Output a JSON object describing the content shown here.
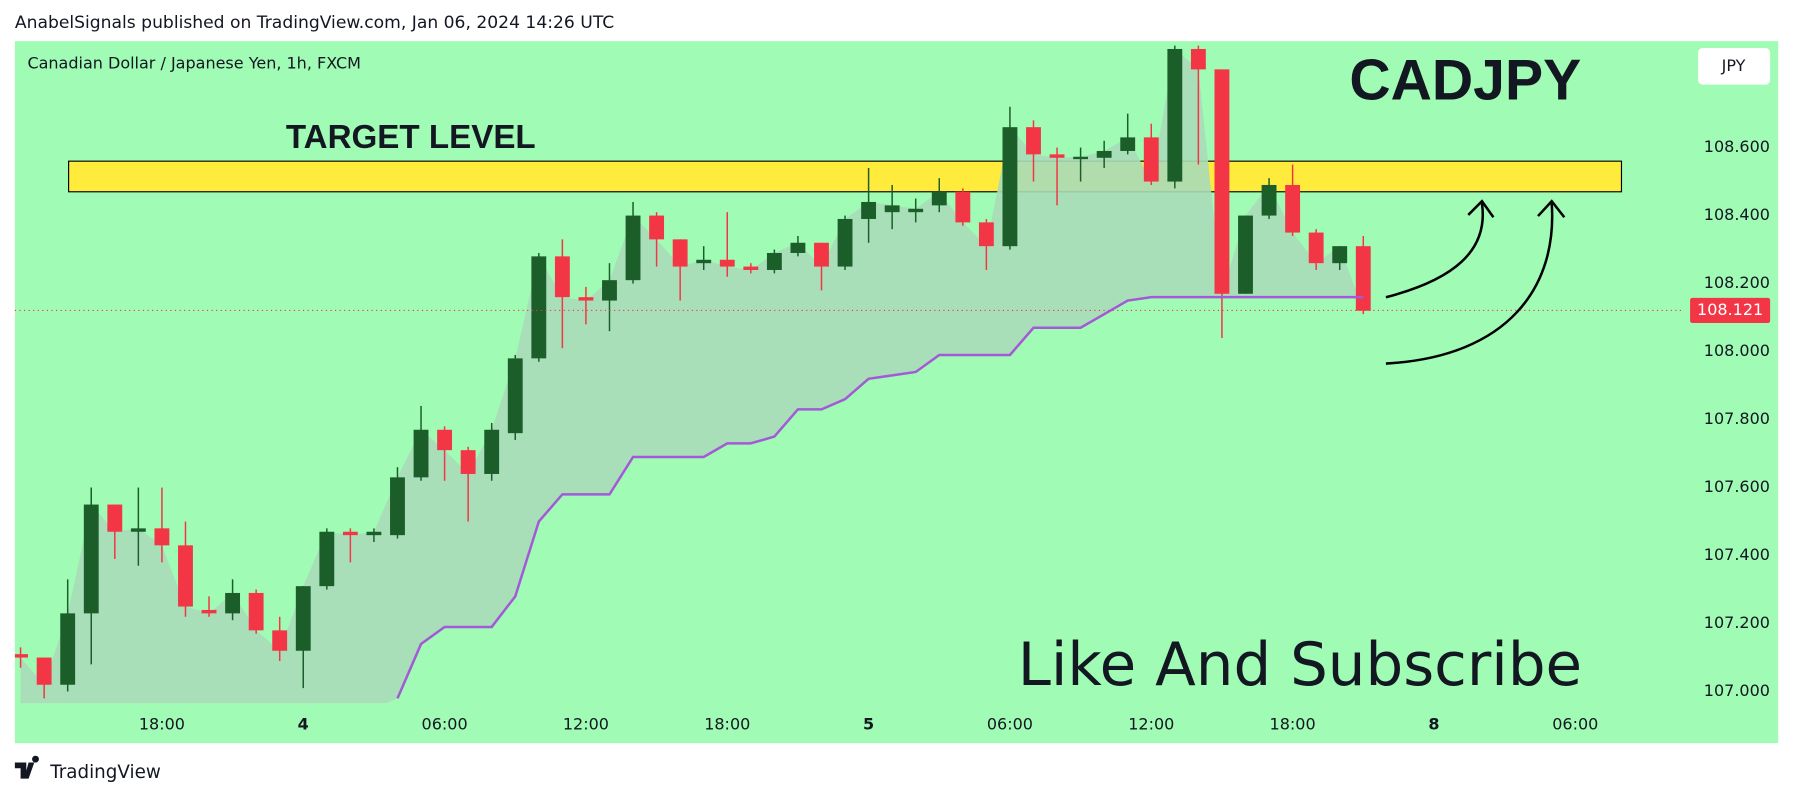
{
  "header": "AnabelSignals published on TradingView.com, Jan 06, 2024 14:26 UTC",
  "footer": "TradingView",
  "chart_data": {
    "type": "candlestick",
    "title": "CADJPY",
    "subtitle": "Canadian Dollar / Japanese Yen, 1h, FXCM",
    "currency": "JPY",
    "annotations": [
      "TARGET LEVEL",
      "Like And Subscribe"
    ],
    "target_zone": [
      108.47,
      108.56
    ],
    "target_color": "#ffeb3b",
    "background": "#a0fbb4",
    "up_color": "#1b5e2a",
    "down_color": "#f23645",
    "categories": [
      null,
      null,
      null,
      null,
      null,
      null,
      "18:00",
      null,
      null,
      null,
      null,
      null,
      "4",
      null,
      null,
      null,
      null,
      null,
      "06:00",
      null,
      null,
      null,
      null,
      null,
      "12:00",
      null,
      null,
      null,
      null,
      null,
      "18:00",
      null,
      null,
      null,
      null,
      null,
      "5",
      null,
      null,
      null,
      null,
      null,
      "06:00",
      null,
      null,
      null,
      null,
      null,
      "12:00",
      null,
      null,
      null,
      null,
      null,
      "18:00",
      null,
      null,
      null,
      null,
      null,
      "8",
      null,
      null,
      null,
      null,
      null,
      "06:00",
      null,
      null,
      null,
      null
    ],
    "open": [
      107.11,
      107.1,
      107.02,
      107.23,
      107.55,
      107.47,
      107.48,
      107.43,
      107.24,
      107.23,
      107.29,
      107.18,
      107.12,
      107.31,
      107.47,
      107.46,
      107.46,
      107.63,
      107.77,
      107.71,
      107.64,
      107.76,
      107.98,
      108.28,
      108.16,
      108.15,
      108.21,
      108.4,
      108.33,
      108.26,
      108.27,
      108.25,
      108.24,
      108.29,
      108.32,
      108.25,
      108.39,
      108.41,
      108.41,
      108.43,
      108.47,
      108.38,
      108.31,
      108.66,
      108.58,
      108.566,
      108.57,
      108.59,
      108.63,
      108.5,
      108.89,
      108.83,
      108.17,
      108.4,
      108.49,
      108.35,
      108.26,
      108.31,
      null,
      null,
      null,
      null,
      null,
      null,
      null,
      null,
      null,
      null,
      null,
      null,
      null
    ],
    "high": [
      107.13,
      107.1,
      107.33,
      107.6,
      107.55,
      107.6,
      107.6,
      107.5,
      107.28,
      107.33,
      107.3,
      107.22,
      107.31,
      107.48,
      107.48,
      107.48,
      107.66,
      107.84,
      107.78,
      107.72,
      107.79,
      107.99,
      108.29,
      108.33,
      108.19,
      108.26,
      108.44,
      108.41,
      108.33,
      108.31,
      108.41,
      108.26,
      108.3,
      108.34,
      108.32,
      108.4,
      108.54,
      108.49,
      108.45,
      108.51,
      108.48,
      108.39,
      108.72,
      108.68,
      108.6,
      108.6,
      108.62,
      108.7,
      108.67,
      108.9,
      108.9,
      108.83,
      108.4,
      108.51,
      108.55,
      108.36,
      108.31,
      108.34,
      null,
      null,
      null,
      null,
      null,
      null,
      null,
      null,
      null,
      null,
      null,
      null,
      null
    ],
    "low": [
      107.07,
      106.98,
      107.0,
      107.08,
      107.39,
      107.37,
      107.38,
      107.22,
      107.22,
      107.21,
      107.17,
      107.09,
      107.01,
      107.3,
      107.38,
      107.44,
      107.45,
      107.62,
      107.62,
      107.5,
      107.62,
      107.74,
      107.97,
      108.01,
      108.08,
      108.06,
      108.2,
      108.25,
      108.15,
      108.24,
      108.22,
      108.23,
      108.23,
      108.28,
      108.18,
      108.24,
      108.32,
      108.36,
      108.38,
      108.41,
      108.37,
      108.24,
      108.3,
      108.5,
      108.43,
      108.5,
      108.54,
      108.58,
      108.49,
      108.48,
      108.55,
      108.04,
      108.17,
      108.39,
      108.34,
      108.24,
      108.24,
      108.11,
      null,
      null,
      null,
      null,
      null,
      null,
      null,
      null,
      null,
      null,
      null,
      null,
      null
    ],
    "close": [
      107.1,
      107.02,
      107.23,
      107.55,
      107.47,
      107.48,
      107.43,
      107.25,
      107.23,
      107.29,
      107.18,
      107.12,
      107.31,
      107.47,
      107.46,
      107.47,
      107.63,
      107.77,
      107.71,
      107.64,
      107.77,
      107.98,
      108.28,
      108.16,
      108.15,
      108.21,
      108.4,
      108.33,
      108.25,
      108.27,
      108.25,
      108.24,
      108.29,
      108.32,
      108.25,
      108.39,
      108.44,
      108.43,
      108.42,
      108.47,
      108.38,
      108.31,
      108.66,
      108.58,
      108.57,
      108.573,
      108.59,
      108.63,
      108.5,
      108.89,
      108.83,
      108.17,
      108.4,
      108.49,
      108.35,
      108.26,
      108.31,
      108.12,
      null,
      null,
      null,
      null,
      null,
      null,
      null,
      null,
      null,
      null,
      null,
      null,
      null
    ],
    "series": [
      {
        "color": "#a35ad6",
        "values": [
          null,
          null,
          null,
          null,
          null,
          null,
          null,
          null,
          null,
          null,
          null,
          null,
          null,
          null,
          null,
          null,
          106.98,
          107.14,
          107.19,
          107.19,
          107.19,
          107.28,
          107.5,
          107.58,
          107.58,
          107.58,
          107.69,
          107.69,
          107.69,
          107.69,
          107.73,
          107.73,
          107.75,
          107.83,
          107.83,
          107.86,
          107.92,
          107.93,
          107.94,
          107.99,
          107.99,
          107.99,
          107.99,
          108.07,
          108.07,
          108.07,
          108.11,
          108.15,
          108.16,
          108.16,
          108.16,
          108.16,
          108.16,
          108.16,
          108.16,
          108.16,
          108.16,
          108.16,
          null,
          null,
          null,
          null,
          null,
          null,
          null,
          null,
          null,
          null,
          null,
          null,
          null
        ]
      }
    ],
    "last_price": {
      "value": 108.121,
      "label": "108.121"
    },
    "ylim": [
      106.966,
      108.913
    ],
    "yticks": [
      {
        "value": 107.0,
        "label": "107.000"
      },
      {
        "value": 107.2,
        "label": "107.200"
      },
      {
        "value": 107.4,
        "label": "107.400"
      },
      {
        "value": 107.6,
        "label": "107.600"
      },
      {
        "value": 107.8,
        "label": "107.800"
      },
      {
        "value": 108.0,
        "label": "108.000"
      },
      {
        "value": 108.2,
        "label": "108.200"
      },
      {
        "value": 108.4,
        "label": "108.400"
      },
      {
        "value": 108.6,
        "label": "108.600"
      }
    ]
  }
}
